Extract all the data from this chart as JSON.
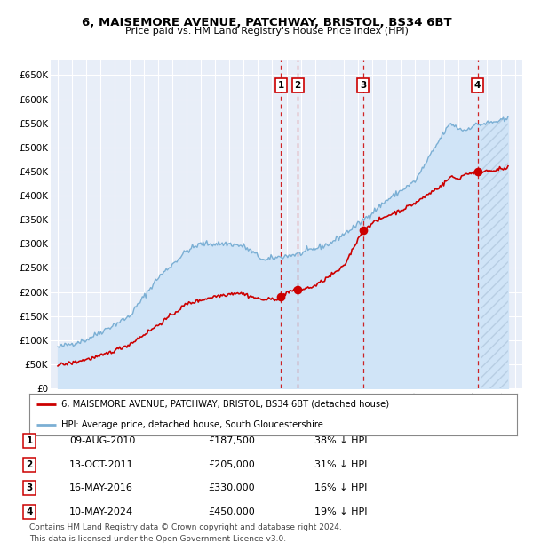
{
  "title_line1": "6, MAISEMORE AVENUE, PATCHWAY, BRISTOL, BS34 6BT",
  "title_line2": "Price paid vs. HM Land Registry's House Price Index (HPI)",
  "background_color": "#ffffff",
  "plot_bg_color": "#e8eef8",
  "grid_color": "#ffffff",
  "hpi_color": "#7bafd4",
  "price_color": "#cc0000",
  "hpi_fill_color": "#d0e4f7",
  "transactions": [
    {
      "num": 1,
      "date_x": 2010.6,
      "price": 187500
    },
    {
      "num": 2,
      "date_x": 2011.78,
      "price": 205000
    },
    {
      "num": 3,
      "date_x": 2016.37,
      "price": 330000
    },
    {
      "num": 4,
      "date_x": 2024.37,
      "price": 450000
    }
  ],
  "legend_label_red": "6, MAISEMORE AVENUE, PATCHWAY, BRISTOL, BS34 6BT (detached house)",
  "legend_label_blue": "HPI: Average price, detached house, South Gloucestershire",
  "footer_line1": "Contains HM Land Registry data © Crown copyright and database right 2024.",
  "footer_line2": "This data is licensed under the Open Government Licence v3.0.",
  "ylim": [
    0,
    680000
  ],
  "xlim_start": 1994.5,
  "xlim_end": 2027.5,
  "yticks": [
    0,
    50000,
    100000,
    150000,
    200000,
    250000,
    300000,
    350000,
    400000,
    450000,
    500000,
    550000,
    600000,
    650000
  ],
  "ytick_labels": [
    "£0",
    "£50K",
    "£100K",
    "£150K",
    "£200K",
    "£250K",
    "£300K",
    "£350K",
    "£400K",
    "£450K",
    "£500K",
    "£550K",
    "£600K",
    "£650K"
  ],
  "table_rows": [
    {
      "num": 1,
      "date": "09-AUG-2010",
      "price": "£187,500",
      "pct": "38% ↓ HPI"
    },
    {
      "num": 2,
      "date": "13-OCT-2011",
      "price": "£205,000",
      "pct": "31% ↓ HPI"
    },
    {
      "num": 3,
      "date": "16-MAY-2016",
      "price": "£330,000",
      "pct": "16% ↓ HPI"
    },
    {
      "num": 4,
      "date": "10-MAY-2024",
      "price": "£450,000",
      "pct": "19% ↓ HPI"
    }
  ]
}
